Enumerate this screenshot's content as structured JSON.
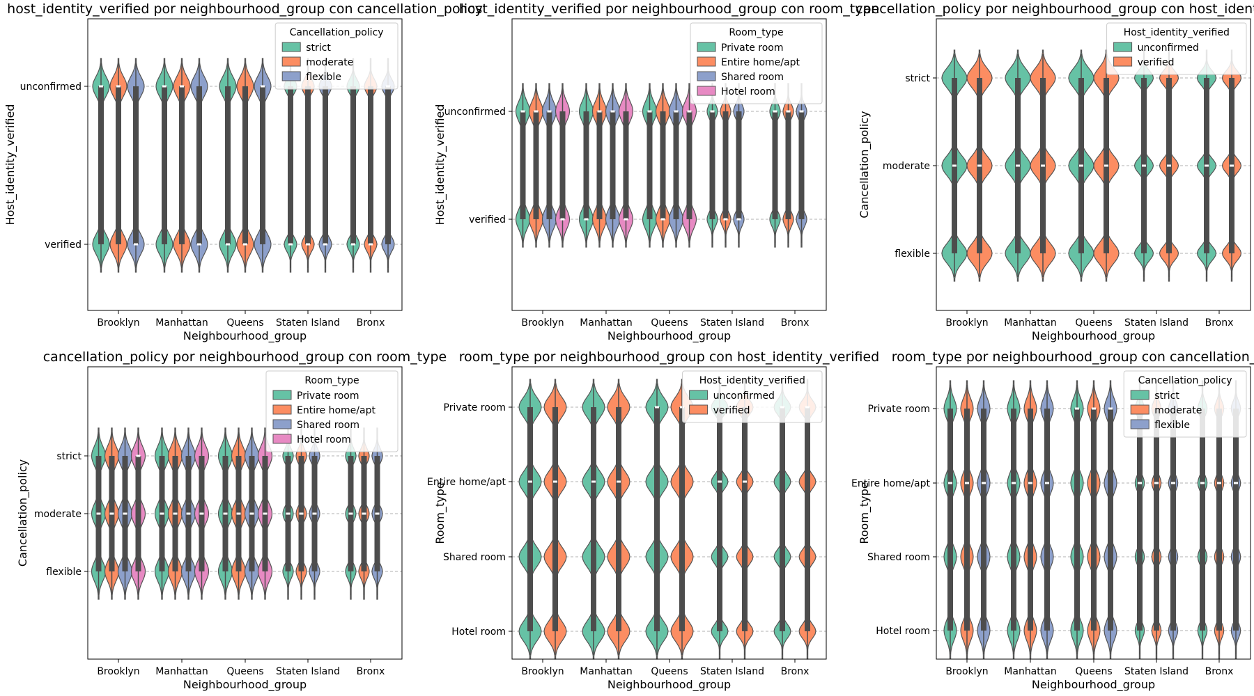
{
  "colors": {
    "teal": "#66c2a5",
    "orange": "#fc8d62",
    "blue": "#8da0cb",
    "pink": "#e78ac3",
    "box": "#4d4d4d",
    "grid": "#b0b0b0"
  },
  "chart_data": [
    {
      "type": "violin",
      "title": "host_identity_verified por neighbourhood_group con cancellation_policy",
      "xlabel": "Neighbourhood_group",
      "ylabel": "Host_identity_verified",
      "categories": [
        "Brooklyn",
        "Manhattan",
        "Queens",
        "Staten Island",
        "Bronx"
      ],
      "y_categories": [
        "unconfirmed",
        "verified"
      ],
      "grid": "horizontal dashed",
      "legend": {
        "title": "Cancellation_policy",
        "position": "top-right",
        "entries": [
          "strict",
          "moderate",
          "flexible"
        ]
      },
      "series": [
        {
          "name": "strict",
          "color": "teal",
          "medians": [
            "unconfirmed",
            "unconfirmed",
            "verified",
            "verified",
            "verified"
          ]
        },
        {
          "name": "moderate",
          "color": "orange",
          "medians": [
            "unconfirmed",
            "unconfirmed",
            "verified",
            "verified",
            "verified"
          ]
        },
        {
          "name": "flexible",
          "color": "blue",
          "medians": [
            "verified",
            "verified",
            "unconfirmed",
            "verified",
            "unconfirmed"
          ]
        }
      ]
    },
    {
      "type": "violin",
      "title": "host_identity_verified por neighbourhood_group con room_type",
      "xlabel": "Neighbourhood_group",
      "ylabel": "Host_identity_verified",
      "categories": [
        "Brooklyn",
        "Manhattan",
        "Queens",
        "Staten Island",
        "Bronx"
      ],
      "y_categories": [
        "unconfirmed",
        "verified"
      ],
      "grid": "horizontal dashed",
      "legend": {
        "title": "Room_type",
        "position": "top-right",
        "entries": [
          "Private room",
          "Entire home/apt",
          "Shared room",
          "Hotel room"
        ]
      },
      "series": [
        {
          "name": "Private room",
          "color": "teal",
          "medians": [
            "unconfirmed",
            "verified",
            "unconfirmed",
            "unconfirmed",
            "unconfirmed"
          ]
        },
        {
          "name": "Entire home/apt",
          "color": "orange",
          "medians": [
            "unconfirmed",
            "unconfirmed",
            "verified",
            "verified",
            "unconfirmed"
          ]
        },
        {
          "name": "Shared room",
          "color": "blue",
          "medians": [
            "unconfirmed",
            "unconfirmed",
            "unconfirmed",
            "verified",
            "unconfirmed"
          ]
        },
        {
          "name": "Hotel room",
          "color": "pink",
          "medians": [
            "verified",
            "verified",
            "unconfirmed",
            null,
            null
          ]
        }
      ]
    },
    {
      "type": "violin",
      "title": "cancellation_policy por neighbourhood_group con host_identity_verified",
      "xlabel": "Neighbourhood_group",
      "ylabel": "Cancellation_policy",
      "categories": [
        "Brooklyn",
        "Manhattan",
        "Queens",
        "Staten Island",
        "Bronx"
      ],
      "y_categories": [
        "strict",
        "moderate",
        "flexible"
      ],
      "grid": "horizontal dashed",
      "legend": {
        "title": "Host_identity_verified",
        "position": "top-right",
        "entries": [
          "unconfirmed",
          "verified"
        ]
      },
      "series": [
        {
          "name": "unconfirmed",
          "color": "teal",
          "medians": [
            "moderate",
            "moderate",
            "moderate",
            "moderate",
            "moderate"
          ]
        },
        {
          "name": "verified",
          "color": "orange",
          "medians": [
            "moderate",
            "moderate",
            "moderate",
            "moderate",
            "moderate"
          ]
        }
      ]
    },
    {
      "type": "violin",
      "title": "cancellation_policy por neighbourhood_group con room_type",
      "xlabel": "Neighbourhood_group",
      "ylabel": "Cancellation_policy",
      "categories": [
        "Brooklyn",
        "Manhattan",
        "Queens",
        "Staten Island",
        "Bronx"
      ],
      "y_categories": [
        "strict",
        "moderate",
        "flexible"
      ],
      "grid": "horizontal dashed",
      "legend": {
        "title": "Room_type",
        "position": "top-right",
        "entries": [
          "Private room",
          "Entire home/apt",
          "Shared room",
          "Hotel room"
        ]
      },
      "series": [
        {
          "name": "Private room",
          "color": "teal",
          "medians": [
            "moderate",
            "moderate",
            "moderate",
            "moderate",
            "moderate"
          ]
        },
        {
          "name": "Entire home/apt",
          "color": "orange",
          "medians": [
            "moderate",
            "moderate",
            "moderate",
            "moderate",
            "moderate"
          ]
        },
        {
          "name": "Shared room",
          "color": "blue",
          "medians": [
            "moderate",
            "moderate",
            "moderate",
            "moderate",
            "moderate"
          ]
        },
        {
          "name": "Hotel room",
          "color": "pink",
          "medians": [
            "strict",
            "moderate",
            "moderate",
            null,
            null
          ]
        }
      ]
    },
    {
      "type": "violin",
      "title": "room_type por neighbourhood_group con host_identity_verified",
      "xlabel": "Neighbourhood_group",
      "ylabel": "Room_type",
      "categories": [
        "Brooklyn",
        "Manhattan",
        "Queens",
        "Staten Island",
        "Bronx"
      ],
      "y_categories": [
        "Private room",
        "Entire home/apt",
        "Shared room",
        "Hotel room"
      ],
      "grid": "horizontal dashed",
      "legend": {
        "title": "Host_identity_verified",
        "position": "top-right",
        "entries": [
          "unconfirmed",
          "verified"
        ]
      },
      "series": [
        {
          "name": "unconfirmed",
          "color": "teal",
          "medians": [
            "Entire home/apt",
            "Entire home/apt",
            "Private room",
            "Entire home/apt",
            "Private room"
          ]
        },
        {
          "name": "verified",
          "color": "orange",
          "medians": [
            "Entire home/apt",
            "Entire home/apt",
            "Private room",
            "Entire home/apt",
            "Private room"
          ]
        }
      ]
    },
    {
      "type": "violin",
      "title": "room_type por neighbourhood_group con cancellation_policy",
      "xlabel": "Neighbourhood_group",
      "ylabel": "Room_type",
      "categories": [
        "Brooklyn",
        "Manhattan",
        "Queens",
        "Staten Island",
        "Bronx"
      ],
      "y_categories": [
        "Private room",
        "Entire home/apt",
        "Shared room",
        "Hotel room"
      ],
      "grid": "horizontal dashed",
      "legend": {
        "title": "Cancellation_policy",
        "position": "top-right",
        "entries": [
          "strict",
          "moderate",
          "flexible"
        ]
      },
      "series": [
        {
          "name": "strict",
          "color": "teal",
          "medians": [
            "Entire home/apt",
            "Entire home/apt",
            "Private room",
            "Entire home/apt",
            "Entire home/apt"
          ]
        },
        {
          "name": "moderate",
          "color": "orange",
          "medians": [
            "Entire home/apt",
            "Entire home/apt",
            "Private room",
            "Entire home/apt",
            "Entire home/apt"
          ]
        },
        {
          "name": "flexible",
          "color": "blue",
          "medians": [
            "Entire home/apt",
            "Entire home/apt",
            "Private room",
            "Entire home/apt",
            "Entire home/apt"
          ]
        }
      ]
    }
  ]
}
